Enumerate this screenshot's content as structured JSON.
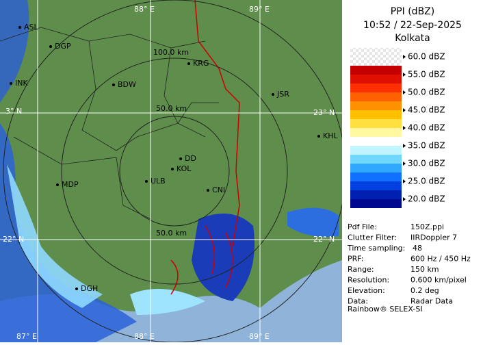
{
  "header": {
    "title": "PPI (dBZ)",
    "datetime": "10:52 / 22-Sep-2025",
    "station": "Kolkata"
  },
  "legend": [
    {
      "label": "60.0 dBZ",
      "colors": [
        "#8b0000",
        "#a00000"
      ]
    },
    {
      "label": "55.0 dBZ",
      "colors": [
        "#c40000",
        "#e01000"
      ]
    },
    {
      "label": "50.0 dBZ",
      "colors": [
        "#ff3000",
        "#ff6000"
      ]
    },
    {
      "label": "45.0 dBZ",
      "colors": [
        "#ff9000",
        "#ffc000"
      ]
    },
    {
      "label": "40.0 dBZ",
      "colors": [
        "#ffe040",
        "#fff8a0"
      ]
    },
    {
      "label": "35.0 dBZ",
      "colors": [
        "#ffffff",
        "#c0f4ff"
      ]
    },
    {
      "label": "30.0 dBZ",
      "colors": [
        "#70d8ff",
        "#30a8ff"
      ]
    },
    {
      "label": "25.0 dBZ",
      "colors": [
        "#1070ff",
        "#0040e0"
      ]
    },
    {
      "label": "20.0 dBZ",
      "colors": [
        "#0020b0",
        "#000890"
      ]
    }
  ],
  "map": {
    "grid_labels": [
      "88° E",
      "89° E",
      "23° N",
      "22° N",
      "87° E",
      "88° E",
      "89° E",
      "22° N",
      "3° N"
    ],
    "range_labels": [
      "100.0 km",
      "50.0 km",
      "50.0 km"
    ],
    "places": [
      "ASL",
      "DGP",
      "BDW",
      "KRG",
      "JSR",
      "KHL",
      "DD",
      "KOL",
      "ULB",
      "CNI",
      "MDP",
      "DGH",
      "INK"
    ]
  },
  "info": {
    "rows": [
      [
        "Pdf File:",
        "150Z.ppi"
      ],
      [
        "Clutter Filter:",
        "IIRDoppler 7"
      ],
      [
        "Time sampling:",
        "48"
      ],
      [
        "PRF:",
        "600 Hz / 450 Hz"
      ],
      [
        "Range:",
        "150 km"
      ],
      [
        "Resolution:",
        "0.600 km/pixel"
      ],
      [
        "Elevation:",
        "0.2 deg"
      ],
      [
        "Data:",
        "Radar Data"
      ]
    ],
    "footer": "Rainbow® SELEX-SI"
  }
}
